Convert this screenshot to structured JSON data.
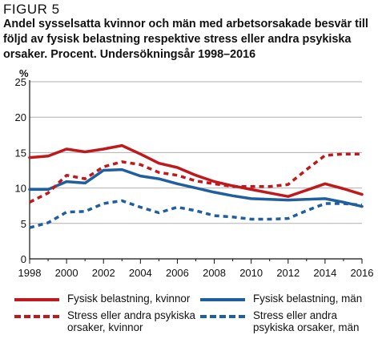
{
  "figure": {
    "label": "FIGUR 5",
    "title": "Andel sysselsatta kvinnor och män med arbetsorsakade besvär till följd av fysisk belastning respektive stress eller andra psykiska orsaker. Procent. Undersökningsår 1998–2016"
  },
  "chart_data": {
    "type": "line",
    "ylabel": "%",
    "xlabel": "",
    "ylim": [
      0,
      25
    ],
    "xlim": [
      1998,
      2016
    ],
    "yticks": [
      0,
      5,
      10,
      15,
      20,
      25
    ],
    "xticks": [
      1998,
      2000,
      2002,
      2004,
      2006,
      2008,
      2010,
      2012,
      2014,
      2016
    ],
    "grid": "horizontal",
    "legend_position": "bottom",
    "x": [
      1998,
      1999,
      2000,
      2001,
      2002,
      2003,
      2004,
      2005,
      2006,
      2007,
      2008,
      2009,
      2010,
      2011,
      2012,
      2013,
      2014,
      2015,
      2016
    ],
    "series": [
      {
        "name": "Fysisk belastning, kvinnor",
        "color": "#c0191d",
        "style": "solid",
        "values": [
          14.3,
          14.5,
          15.5,
          15.1,
          15.5,
          16.0,
          14.8,
          13.5,
          12.9,
          11.8,
          10.9,
          10.3,
          9.8,
          9.3,
          8.8,
          9.7,
          10.6,
          9.9,
          9.1
        ]
      },
      {
        "name": "Fysisk belastning, män",
        "color": "#1f5fa0",
        "style": "solid",
        "values": [
          9.8,
          9.8,
          10.9,
          10.7,
          12.5,
          12.6,
          11.7,
          11.3,
          10.6,
          10.0,
          9.4,
          8.9,
          8.5,
          8.4,
          8.3,
          8.4,
          8.5,
          8.0,
          7.4
        ]
      },
      {
        "name": "Stress eller andra psykiska orsaker, kvinnor",
        "color": "#c0191d",
        "style": "dashed",
        "values": [
          8.0,
          9.3,
          11.8,
          11.3,
          13.0,
          13.7,
          13.3,
          12.2,
          11.8,
          11.0,
          10.6,
          10.2,
          10.2,
          10.2,
          10.5,
          12.6,
          14.6,
          14.8,
          14.8
        ]
      },
      {
        "name": "Stress eller andra psykiska orsaker, män",
        "color": "#1f5fa0",
        "style": "dashed",
        "values": [
          4.4,
          5.1,
          6.6,
          6.7,
          7.8,
          8.2,
          7.3,
          6.5,
          7.3,
          6.8,
          6.1,
          5.9,
          5.6,
          5.6,
          5.7,
          6.8,
          7.8,
          7.8,
          7.6
        ]
      }
    ]
  },
  "legend": {
    "items": [
      {
        "label": "Fysisk belastning, kvinnor",
        "color": "#c0191d",
        "style": "solid"
      },
      {
        "label": "Fysisk belastning, män",
        "color": "#1f5fa0",
        "style": "solid"
      },
      {
        "label": "Stress eller andra psykiska orsaker, kvinnor",
        "color": "#c0191d",
        "style": "dashed",
        "lines": [
          "Stress eller andra psykiska",
          "orsaker, kvinnor"
        ]
      },
      {
        "label": "Stress eller andra psykiska orsaker, män",
        "color": "#1f5fa0",
        "style": "dashed",
        "lines": [
          "Stress eller andra",
          "psykiska orsaker, män"
        ]
      }
    ]
  }
}
